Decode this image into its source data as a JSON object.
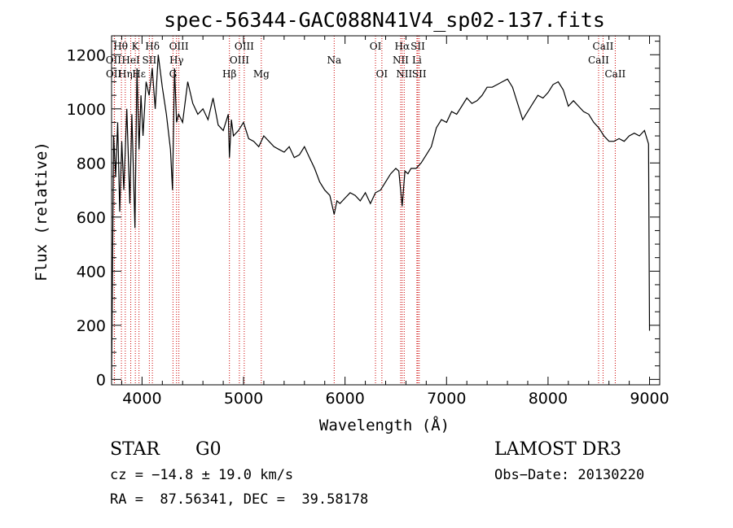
{
  "chart_data": {
    "type": "line",
    "title": "spec-56344-GAC088N41V4_sp02-137.fits",
    "xlabel": "Wavelength (Å)",
    "ylabel": "Flux (relative)",
    "xlim": [
      3700,
      9100
    ],
    "ylim": [
      -20,
      1270
    ],
    "xticks": [
      4000,
      5000,
      6000,
      7000,
      8000,
      9000
    ],
    "yticks": [
      0,
      200,
      400,
      600,
      800,
      1000,
      1200
    ],
    "series": [
      {
        "name": "flux",
        "x": [
          3700,
          3720,
          3740,
          3760,
          3780,
          3800,
          3820,
          3850,
          3880,
          3900,
          3930,
          3950,
          3970,
          3990,
          4010,
          4040,
          4070,
          4100,
          4130,
          4160,
          4200,
          4240,
          4280,
          4300,
          4320,
          4340,
          4360,
          4400,
          4450,
          4500,
          4550,
          4600,
          4650,
          4700,
          4750,
          4800,
          4850,
          4861,
          4880,
          4900,
          4950,
          5000,
          5050,
          5100,
          5150,
          5200,
          5250,
          5300,
          5350,
          5400,
          5450,
          5500,
          5550,
          5600,
          5650,
          5700,
          5750,
          5800,
          5850,
          5893,
          5920,
          5950,
          6000,
          6050,
          6100,
          6150,
          6200,
          6250,
          6300,
          6350,
          6400,
          6450,
          6500,
          6530,
          6563,
          6590,
          6620,
          6650,
          6700,
          6750,
          6800,
          6850,
          6900,
          6950,
          7000,
          7050,
          7100,
          7150,
          7200,
          7250,
          7300,
          7350,
          7400,
          7450,
          7500,
          7550,
          7600,
          7650,
          7700,
          7750,
          7800,
          7850,
          7900,
          7950,
          8000,
          8050,
          8100,
          8150,
          8200,
          8250,
          8300,
          8350,
          8400,
          8450,
          8500,
          8550,
          8600,
          8650,
          8700,
          8750,
          8800,
          8850,
          8900,
          8950,
          8990,
          9000
        ],
        "y": [
          0,
          900,
          750,
          950,
          620,
          880,
          700,
          1000,
          650,
          980,
          560,
          1150,
          850,
          1050,
          900,
          1100,
          1050,
          1150,
          1000,
          1200,
          1080,
          980,
          850,
          700,
          1150,
          950,
          980,
          950,
          1100,
          1020,
          980,
          1000,
          960,
          1040,
          940,
          920,
          980,
          820,
          960,
          900,
          920,
          950,
          890,
          880,
          860,
          900,
          880,
          860,
          850,
          840,
          860,
          820,
          830,
          860,
          820,
          780,
          730,
          700,
          680,
          610,
          660,
          650,
          670,
          690,
          680,
          660,
          690,
          650,
          690,
          700,
          730,
          760,
          780,
          770,
          640,
          770,
          760,
          780,
          780,
          800,
          830,
          860,
          930,
          960,
          950,
          990,
          980,
          1010,
          1040,
          1020,
          1030,
          1050,
          1080,
          1080,
          1090,
          1100,
          1110,
          1080,
          1020,
          960,
          990,
          1020,
          1050,
          1040,
          1060,
          1090,
          1100,
          1070,
          1010,
          1030,
          1010,
          990,
          980,
          950,
          930,
          900,
          880,
          880,
          890,
          880,
          900,
          910,
          900,
          920,
          870,
          180
        ]
      }
    ],
    "lines": [
      {
        "name": "H_theta",
        "label": "Hθ",
        "wave": 3797,
        "row": 0,
        "dx": -1
      },
      {
        "name": "K",
        "label": "K",
        "wave": 3934,
        "row": 0,
        "dx": 0
      },
      {
        "name": "H_delta",
        "label": "Hδ",
        "wave": 4102,
        "row": 0,
        "dx": 0
      },
      {
        "name": "OIII-4363",
        "label": "OIII",
        "wave": 4363,
        "row": 0,
        "dx": 0
      },
      {
        "name": "OIII-5007",
        "label": "OIII",
        "wave": 5007,
        "row": 0,
        "dx": 0
      },
      {
        "name": "OI-6300",
        "label": "OI",
        "wave": 6300,
        "row": 0,
        "dx": 0
      },
      {
        "name": "H_alpha",
        "label": "Hα",
        "wave": 6563,
        "row": 0,
        "dx": 0
      },
      {
        "name": "SII-6717",
        "label": "SII",
        "wave": 6717,
        "row": 0,
        "dx": 0
      },
      {
        "name": "CaII-8542",
        "label": "CaII",
        "wave": 8542,
        "row": 0,
        "dx": 0
      },
      {
        "name": "OII-3727",
        "label": "OII",
        "wave": 3727,
        "row": 1,
        "dx": -1
      },
      {
        "name": "HeI-3889",
        "label": "HeI",
        "wave": 3889,
        "row": 1,
        "dx": 0
      },
      {
        "name": "SII-4072",
        "label": "SII",
        "wave": 4072,
        "row": 1,
        "dx": 0
      },
      {
        "name": "H_gamma",
        "label": "Hγ",
        "wave": 4340,
        "row": 1,
        "dx": 0
      },
      {
        "name": "OIII-4959",
        "label": "OIII",
        "wave": 4959,
        "row": 1,
        "dx": 0
      },
      {
        "name": "Na",
        "label": "Na",
        "wave": 5893,
        "row": 1,
        "dx": 0
      },
      {
        "name": "NII-6548",
        "label": "NII",
        "wave": 6548,
        "row": 1,
        "dx": 0
      },
      {
        "name": "Li",
        "label": "Li",
        "wave": 6708,
        "row": 1,
        "dx": 0
      },
      {
        "name": "CaII-8498",
        "label": "CaII",
        "wave": 8498,
        "row": 1,
        "dx": 0
      },
      {
        "name": "OII-3729",
        "label": "OII",
        "wave": 3729,
        "row": 2,
        "dx": -1
      },
      {
        "name": "H_eta",
        "label": "Hη",
        "wave": 3835,
        "row": 2,
        "dx": 0
      },
      {
        "name": "H_epsilon",
        "label": "Hε",
        "wave": 3970,
        "row": 2,
        "dx": 0
      },
      {
        "name": "G",
        "label": "G",
        "wave": 4305,
        "row": 2,
        "dx": 0
      },
      {
        "name": "H_beta",
        "label": "Hβ",
        "wave": 4861,
        "row": 2,
        "dx": 0
      },
      {
        "name": "Mg",
        "label": "Mg",
        "wave": 5175,
        "row": 2,
        "dx": 0
      },
      {
        "name": "OI-6363",
        "label": "OI",
        "wave": 6363,
        "row": 2,
        "dx": 0
      },
      {
        "name": "NII-6583",
        "label": "NII",
        "wave": 6583,
        "row": 2,
        "dx": 0
      },
      {
        "name": "SII-6731",
        "label": "SII",
        "wave": 6731,
        "row": 2,
        "dx": 0
      },
      {
        "name": "CaII-8662",
        "label": "CaII",
        "wave": 8662,
        "row": 2,
        "dx": 0
      }
    ]
  },
  "info": {
    "object_class": "STAR",
    "subclass": "G0",
    "survey": "LAMOST DR3",
    "cz": "cz = −14.8 ± 19.0 km/s",
    "obs_date": "Obs−Date: 20130220",
    "coords": "RA =  87.56341, DEC =  39.58178"
  },
  "colors": {
    "line_marker": "#cc0000",
    "spectrum": "#000000",
    "axes": "#000000"
  }
}
